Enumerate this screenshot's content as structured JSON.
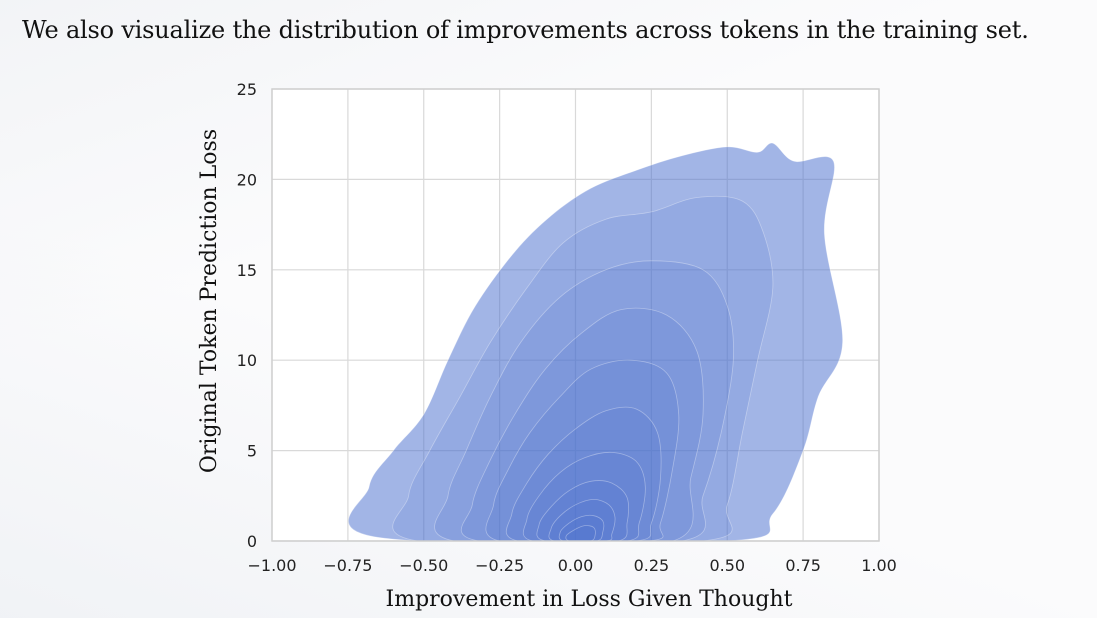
{
  "caption": "We also visualize the distribution of improvements across tokens in the training set.",
  "chart_data": {
    "type": "kde-contour",
    "xlabel": "Improvement in Loss Given Thought",
    "ylabel": "Original Token Prediction Loss",
    "xlim": [
      -1.0,
      1.0
    ],
    "ylim": [
      0,
      25
    ],
    "xticks": [
      "−1.00",
      "−0.75",
      "−0.50",
      "−0.25",
      "0.00",
      "0.25",
      "0.50",
      "0.75",
      "1.00"
    ],
    "xtick_values": [
      -1.0,
      -0.75,
      -0.5,
      -0.25,
      0.0,
      0.25,
      0.5,
      0.75,
      1.0
    ],
    "yticks": [
      "0",
      "5",
      "10",
      "15",
      "20",
      "25"
    ],
    "ytick_values": [
      0,
      5,
      10,
      15,
      20,
      25
    ],
    "grid": true,
    "color": "#4c72d0",
    "levels": [
      {
        "points": [
          [
            -0.68,
            3
          ],
          [
            -0.6,
            5
          ],
          [
            -0.5,
            7
          ],
          [
            -0.42,
            10
          ],
          [
            -0.33,
            13
          ],
          [
            -0.2,
            16
          ],
          [
            -0.08,
            18
          ],
          [
            0.05,
            19.5
          ],
          [
            0.2,
            20.5
          ],
          [
            0.35,
            21.3
          ],
          [
            0.5,
            21.8
          ],
          [
            0.6,
            21.5
          ],
          [
            0.65,
            22
          ],
          [
            0.72,
            21
          ],
          [
            0.85,
            21
          ],
          [
            0.82,
            17
          ],
          [
            0.88,
            11
          ],
          [
            0.8,
            8
          ],
          [
            0.75,
            5
          ],
          [
            0.65,
            1.5
          ],
          [
            0.5,
            0
          ],
          [
            -0.65,
            0.2
          ]
        ]
      },
      {
        "points": [
          [
            -0.55,
            2.5
          ],
          [
            -0.48,
            5
          ],
          [
            -0.38,
            8
          ],
          [
            -0.28,
            11
          ],
          [
            -0.16,
            14
          ],
          [
            -0.04,
            16.5
          ],
          [
            0.1,
            17.8
          ],
          [
            0.25,
            18.2
          ],
          [
            0.4,
            19
          ],
          [
            0.55,
            18.8
          ],
          [
            0.62,
            17
          ],
          [
            0.65,
            14
          ],
          [
            0.6,
            10
          ],
          [
            0.55,
            6
          ],
          [
            0.5,
            2
          ],
          [
            0.42,
            0
          ],
          [
            -0.52,
            0
          ]
        ]
      },
      {
        "points": [
          [
            -0.42,
            2.5
          ],
          [
            -0.36,
            5
          ],
          [
            -0.28,
            8
          ],
          [
            -0.18,
            11
          ],
          [
            -0.05,
            13.5
          ],
          [
            0.1,
            15
          ],
          [
            0.25,
            15.5
          ],
          [
            0.42,
            15
          ],
          [
            0.5,
            13
          ],
          [
            0.52,
            10
          ],
          [
            0.48,
            6
          ],
          [
            0.42,
            2.5
          ],
          [
            0.35,
            0
          ],
          [
            -0.4,
            0
          ]
        ]
      },
      {
        "points": [
          [
            -0.34,
            2
          ],
          [
            -0.28,
            4.5
          ],
          [
            -0.2,
            7
          ],
          [
            -0.1,
            9.5
          ],
          [
            0.02,
            11.5
          ],
          [
            0.15,
            12.8
          ],
          [
            0.3,
            12.5
          ],
          [
            0.4,
            10.5
          ],
          [
            0.42,
            7
          ],
          [
            0.38,
            3.5
          ],
          [
            0.32,
            0
          ],
          [
            -0.32,
            0
          ]
        ]
      },
      {
        "points": [
          [
            -0.27,
            2
          ],
          [
            -0.22,
            4
          ],
          [
            -0.15,
            6
          ],
          [
            -0.05,
            8
          ],
          [
            0.05,
            9.5
          ],
          [
            0.18,
            10
          ],
          [
            0.3,
            9.3
          ],
          [
            0.34,
            7
          ],
          [
            0.32,
            4
          ],
          [
            0.28,
            1
          ],
          [
            0.24,
            0
          ],
          [
            -0.25,
            0
          ]
        ]
      },
      {
        "points": [
          [
            -0.21,
            1.5
          ],
          [
            -0.16,
            3.2
          ],
          [
            -0.09,
            4.8
          ],
          [
            0.0,
            6.2
          ],
          [
            0.1,
            7.2
          ],
          [
            0.2,
            7.3
          ],
          [
            0.27,
            6
          ],
          [
            0.28,
            3.5
          ],
          [
            0.25,
            1
          ],
          [
            0.2,
            0
          ],
          [
            -0.19,
            0
          ]
        ]
      },
      {
        "points": [
          [
            -0.16,
            1.2
          ],
          [
            -0.12,
            2.5
          ],
          [
            -0.05,
            3.8
          ],
          [
            0.03,
            4.6
          ],
          [
            0.12,
            4.9
          ],
          [
            0.2,
            4.4
          ],
          [
            0.23,
            3
          ],
          [
            0.21,
            1
          ],
          [
            0.17,
            0
          ],
          [
            -0.14,
            0
          ]
        ]
      },
      {
        "points": [
          [
            -0.12,
            0.9
          ],
          [
            -0.08,
            1.9
          ],
          [
            -0.02,
            2.8
          ],
          [
            0.05,
            3.3
          ],
          [
            0.12,
            3.2
          ],
          [
            0.17,
            2.4
          ],
          [
            0.17,
            1
          ],
          [
            0.14,
            0
          ],
          [
            -0.1,
            0
          ]
        ]
      },
      {
        "points": [
          [
            -0.08,
            0.7
          ],
          [
            -0.05,
            1.4
          ],
          [
            0.0,
            2.0
          ],
          [
            0.06,
            2.3
          ],
          [
            0.11,
            2.0
          ],
          [
            0.13,
            1.3
          ],
          [
            0.12,
            0.4
          ],
          [
            0.1,
            0
          ],
          [
            -0.07,
            0
          ]
        ]
      },
      {
        "points": [
          [
            -0.05,
            0.5
          ],
          [
            -0.02,
            1.0
          ],
          [
            0.02,
            1.35
          ],
          [
            0.06,
            1.4
          ],
          [
            0.09,
            1.1
          ],
          [
            0.09,
            0.5
          ],
          [
            0.07,
            0
          ],
          [
            -0.04,
            0
          ]
        ]
      },
      {
        "points": [
          [
            -0.03,
            0.3
          ],
          [
            0.0,
            0.65
          ],
          [
            0.03,
            0.85
          ],
          [
            0.06,
            0.75
          ],
          [
            0.065,
            0.35
          ],
          [
            0.05,
            0
          ],
          [
            -0.02,
            0
          ]
        ]
      }
    ]
  }
}
